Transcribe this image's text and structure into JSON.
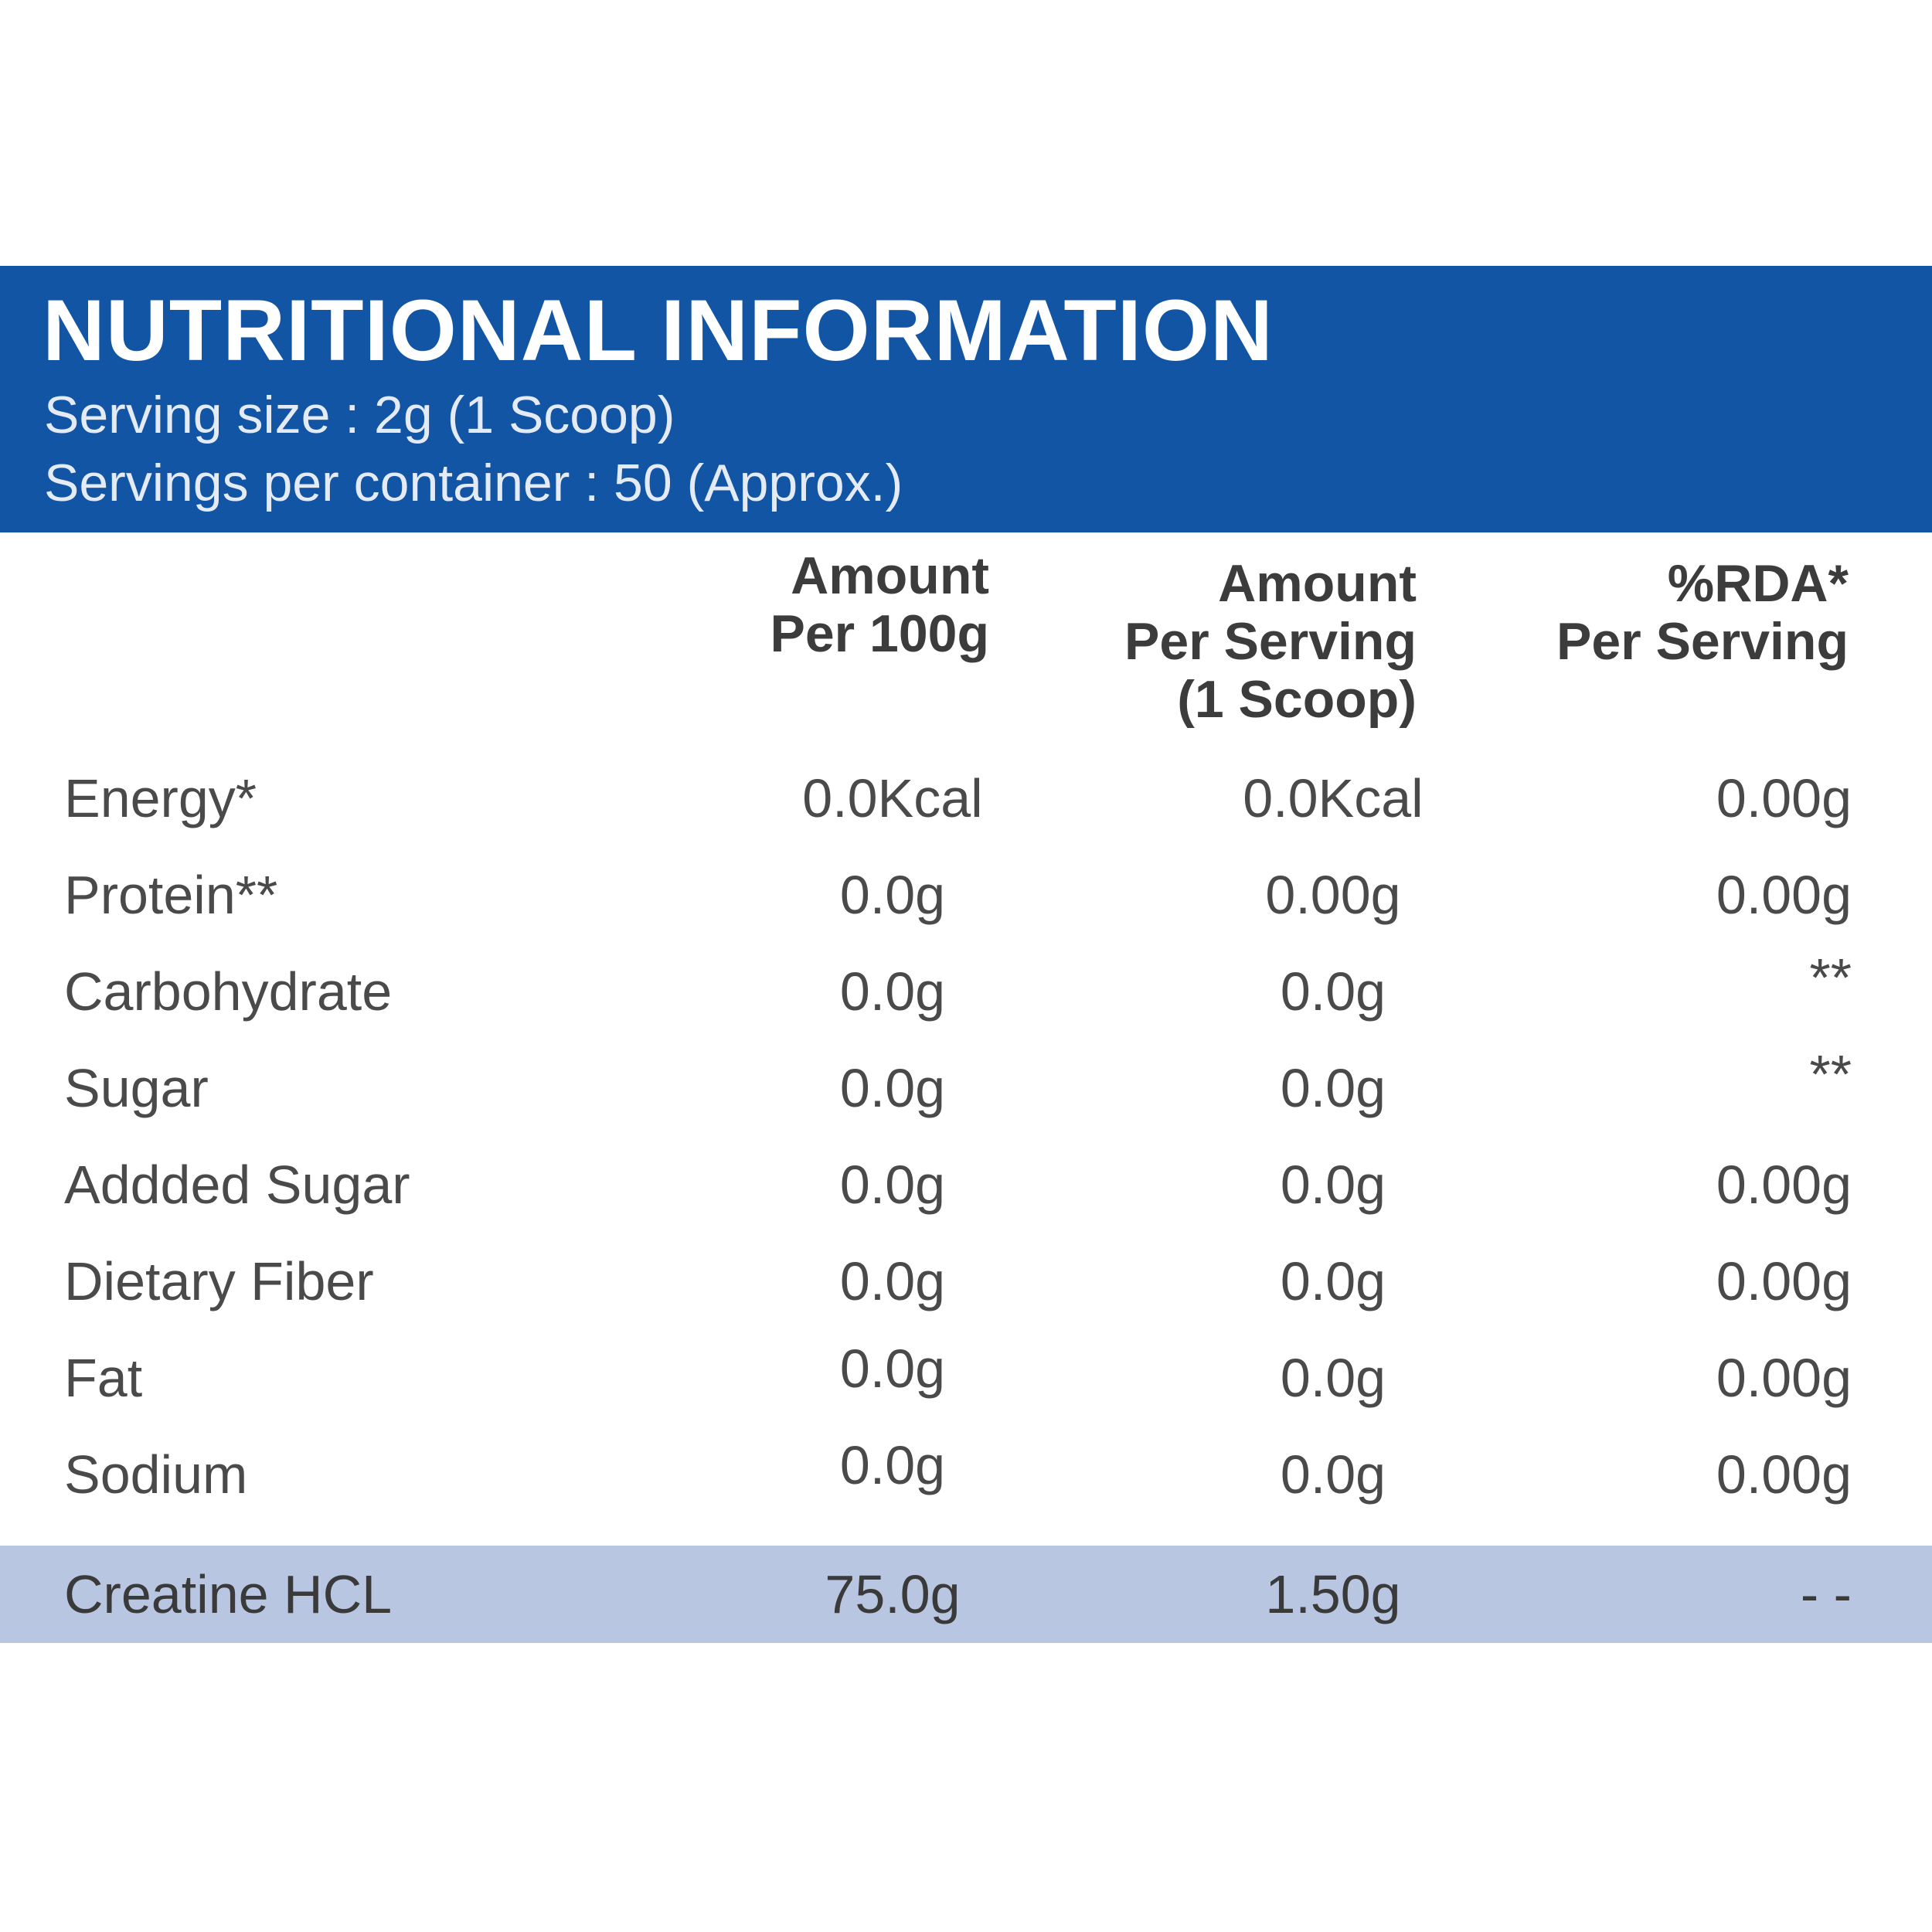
{
  "header": {
    "title": "NUTRITIONAL INFORMATION",
    "serving_size": "Serving size : 2g (1 Scoop)",
    "servings_per_container": "Servings per container : 50 (Approx.)"
  },
  "columns": {
    "per_100g": [
      "Amount",
      "Per 100g"
    ],
    "per_serving": [
      "Amount",
      "Per Serving",
      "(1 Scoop)"
    ],
    "rda": [
      "%RDA*",
      "Per Serving"
    ]
  },
  "rows": [
    {
      "name": "Energy*",
      "per_100g": "0.0Kcal",
      "per_serving": "0.0Kcal",
      "rda": "0.00g"
    },
    {
      "name": "Protein**",
      "per_100g": "0.0g",
      "per_serving": "0.00g",
      "rda": "0.00g"
    },
    {
      "name": "Carbohydrate",
      "per_100g": "0.0g",
      "per_serving": "0.0g",
      "rda": "**"
    },
    {
      "name": "Sugar",
      "per_100g": "0.0g",
      "per_serving": "0.0g",
      "rda": "**"
    },
    {
      "name": "Addded Sugar",
      "per_100g": "0.0g",
      "per_serving": "0.0g",
      "rda": "0.00g"
    },
    {
      "name": "Dietary Fiber",
      "per_100g": "0.0g",
      "per_serving": "0.0g",
      "rda": "0.00g"
    },
    {
      "name": "Fat",
      "per_100g": "0.0g",
      "per_serving": "0.0g",
      "rda": "0.00g"
    },
    {
      "name": "Sodium",
      "per_100g": "0.0g",
      "per_serving": "0.0g",
      "rda": "0.00g"
    }
  ],
  "highlight_row": {
    "name": "Creatine HCL",
    "per_100g": "75.0g",
    "per_serving": "1.50g",
    "rda": "- -"
  },
  "colors": {
    "header_bg": "#1255a5",
    "highlight_bg": "#b8c6e2"
  }
}
